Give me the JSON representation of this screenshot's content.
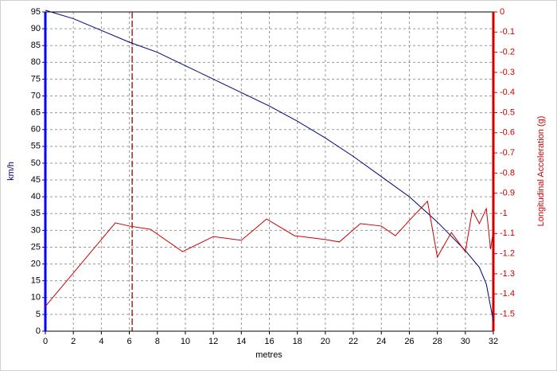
{
  "chart_data": {
    "type": "line",
    "x_label": "metres",
    "y_label": "km/h",
    "y2_label": "Longitudinal Acceleration (g)",
    "xlim": [
      0,
      32
    ],
    "xticks": [
      0,
      2,
      4,
      6,
      8,
      10,
      12,
      14,
      16,
      18,
      20,
      22,
      24,
      26,
      28,
      30,
      32
    ],
    "ylim": [
      0,
      95
    ],
    "yticks": [
      0,
      5,
      10,
      15,
      20,
      25,
      30,
      35,
      40,
      45,
      50,
      55,
      60,
      65,
      70,
      75,
      80,
      85,
      90,
      95
    ],
    "y2lim": [
      -1.585,
      0
    ],
    "y2ticks": [
      0,
      -0.1,
      -0.2,
      -0.3,
      -0.4,
      -0.5,
      -0.6,
      -0.7,
      -0.8,
      -0.9,
      -1,
      -1.1,
      -1.2,
      -1.3,
      -1.4,
      -1.5
    ],
    "grid": true,
    "cursor_x": 6.2,
    "cursor_color": "#a00000",
    "series": [
      {
        "color": "#000080",
        "x": [
          0,
          2,
          4,
          6,
          8,
          10,
          12,
          14,
          16,
          18,
          20,
          22,
          24,
          26,
          28,
          30,
          31,
          31.5,
          32
        ],
        "values": [
          95.5,
          93,
          89.5,
          86,
          83,
          79,
          75,
          71,
          67,
          62.5,
          57.5,
          52,
          46,
          40,
          32.5,
          24,
          19,
          14,
          3
        ]
      },
      {
        "color": "#cc0000",
        "axis": "y2",
        "x": [
          0,
          5,
          6,
          7.5,
          9.8,
          12,
          14,
          15.8,
          17.8,
          20,
          21,
          22.5,
          24,
          25,
          26.2,
          27.3,
          28,
          29,
          30,
          30.5,
          31,
          31.5,
          31.8,
          32
        ],
        "values": [
          -1.462,
          -1.047,
          -1.063,
          -1.079,
          -1.19,
          -1.115,
          -1.134,
          -1.028,
          -1.111,
          -1.13,
          -1.142,
          -1.051,
          -1.063,
          -1.111,
          -1.02,
          -0.94,
          -1.217,
          -1.095,
          -1.19,
          -0.984,
          -1.051,
          -0.976,
          -1.178,
          -1.087
        ]
      }
    ]
  }
}
